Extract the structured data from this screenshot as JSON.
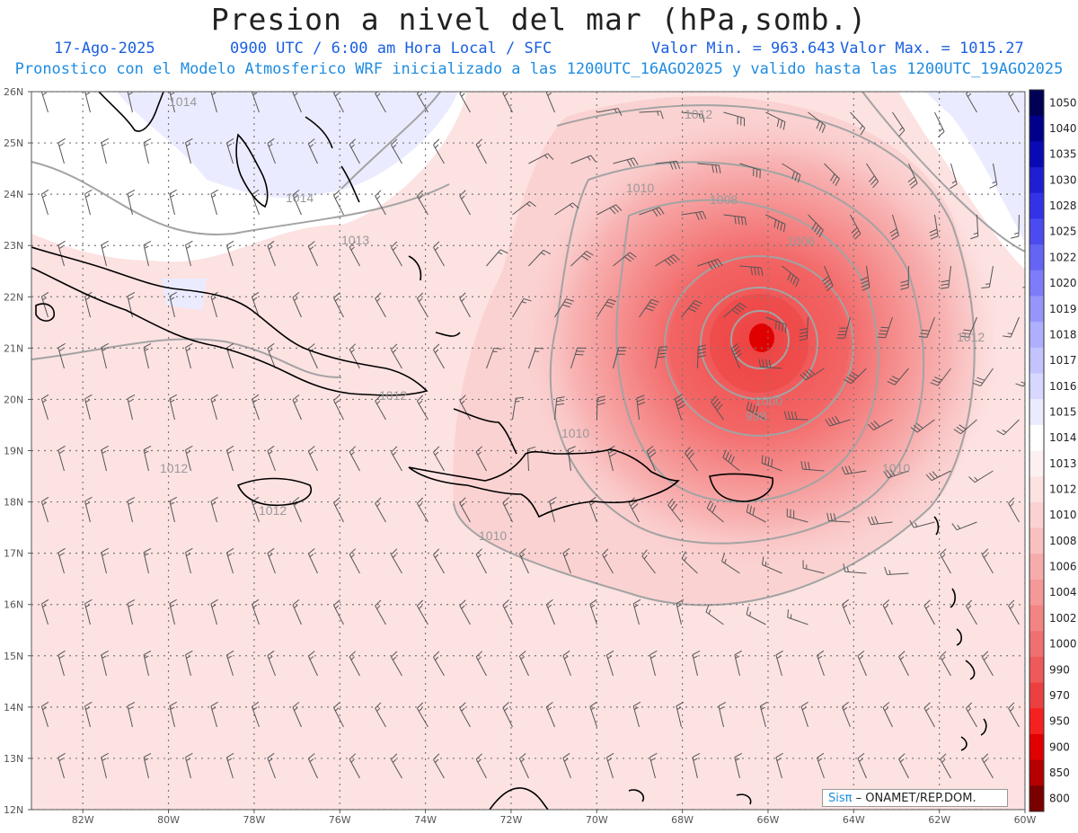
{
  "header": {
    "title": "Presion a nivel del mar (hPa,somb.)",
    "date": "17-Ago-2025",
    "time": "0900 UTC / 6:00 am Hora Local / SFC",
    "min_label": "Valor Min. = 963.643",
    "max_label": "Valor Max. = 1015.27",
    "model_line": "Pronostico con el Modelo Atmosferico WRF inicializado a las 1200UTC_16AGO2025 y valido hasta las  1200UTC_19AGO2025"
  },
  "axes": {
    "lat_labels": [
      "26N",
      "25N",
      "24N",
      "23N",
      "22N",
      "21N",
      "20N",
      "19N",
      "18N",
      "17N",
      "16N",
      "15N",
      "14N",
      "13N",
      "12N"
    ],
    "lon_labels": [
      "82W",
      "80W",
      "78W",
      "76W",
      "74W",
      "72W",
      "70W",
      "68W",
      "66W",
      "64W",
      "62W",
      "60W"
    ],
    "lat_range": [
      12,
      26
    ],
    "lon_range": [
      -83.2,
      -60
    ],
    "grid": true
  },
  "colorbar": {
    "labels": [
      "1050",
      "1040",
      "1035",
      "1030",
      "1028",
      "1025",
      "1022",
      "1020",
      "1019",
      "1018",
      "1017",
      "1016",
      "1015",
      "1014",
      "1013",
      "1012",
      "1010",
      "1008",
      "1006",
      "1004",
      "1002",
      "1000",
      "990",
      "970",
      "950",
      "900",
      "850",
      "800"
    ],
    "colors": [
      "#000055",
      "#00008c",
      "#0a0ab4",
      "#1e1ed2",
      "#3232e6",
      "#4b4bf0",
      "#6464f5",
      "#7d7dfa",
      "#9696fa",
      "#afafff",
      "#c3c3ff",
      "#d7d7ff",
      "#ebebff",
      "#ffffff",
      "#fdf0f0",
      "#fde2e2",
      "#fbd2d2",
      "#f9c0c0",
      "#f7acac",
      "#f59898",
      "#f38484",
      "#f07070",
      "#ee5a5a",
      "#ec4040",
      "#f52020",
      "#e00000",
      "#b40000",
      "#7a0000"
    ]
  },
  "contour_labels": [
    "1014",
    "1014",
    "1013",
    "1012",
    "1012",
    "1012",
    "1012",
    "1012",
    "1010",
    "1010",
    "1010",
    "1010",
    "1008",
    "1006",
    "1000",
    "998"
  ],
  "storm_center": {
    "lat": 21.25,
    "lon": -66.0,
    "min_pressure": 963.643
  },
  "credit": {
    "brand": "Sisπ",
    "org": " – ONAMET/REP.DOM."
  }
}
